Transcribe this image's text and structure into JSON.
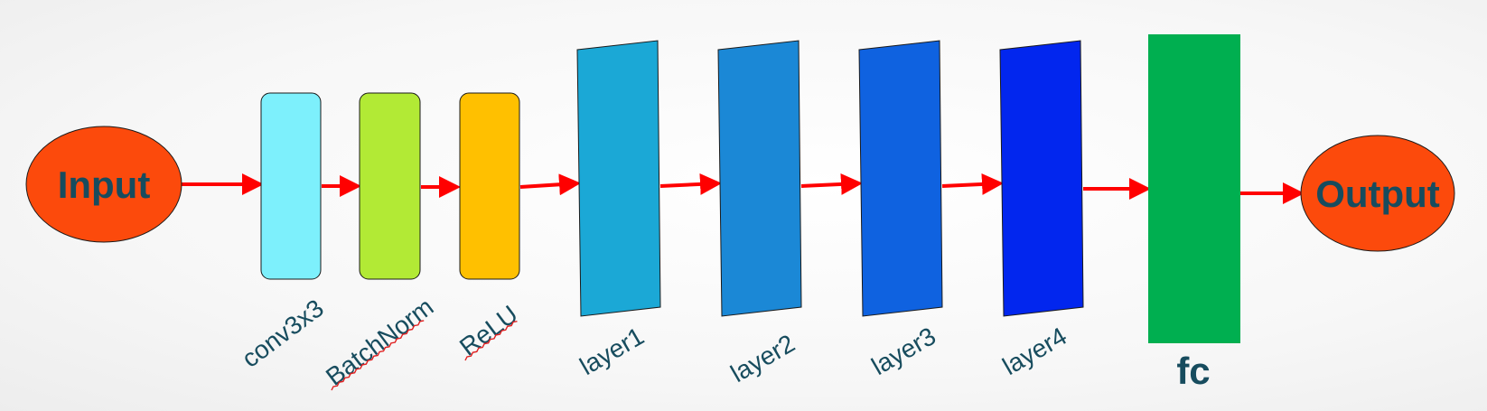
{
  "nodes": {
    "input": {
      "label": "Input",
      "color": "#fc4a0c"
    },
    "conv": {
      "label": "conv3x3",
      "color": "#7df0fc"
    },
    "bn": {
      "label": "BatchNorm",
      "color": "#b2ea35"
    },
    "relu": {
      "label": "ReLU",
      "color": "#ffc000"
    },
    "layer1": {
      "label": "layer1",
      "color": "#1ba8d6"
    },
    "layer2": {
      "label": "layer2",
      "color": "#1b88d6"
    },
    "layer3": {
      "label": "layer3",
      "color": "#0f62e0"
    },
    "layer4": {
      "label": "layer4",
      "color": "#0226ee"
    },
    "fc": {
      "label": "fc",
      "color": "#00af50"
    },
    "output": {
      "label": "Output",
      "color": "#fc4a0c"
    }
  },
  "colors": {
    "arrow": "#ff0000",
    "label_text": "#174c5e"
  }
}
